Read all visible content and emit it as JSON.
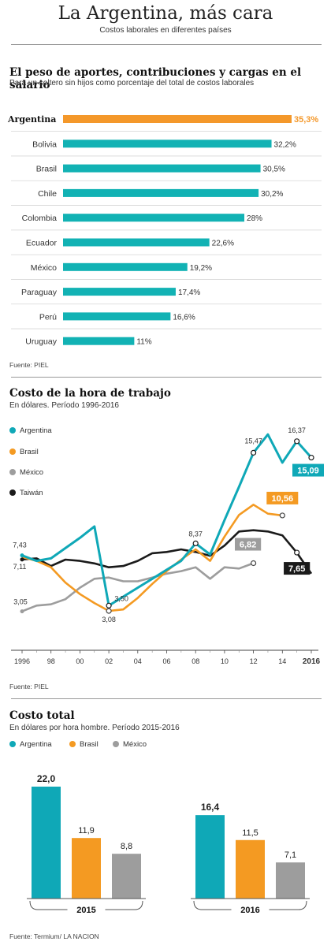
{
  "header": {
    "title": "La Argentina, más cara",
    "subtitle": "Costos laborales en diferentes países"
  },
  "colors": {
    "argentina": "#0fa8b7",
    "brasil": "#f49a22",
    "mexico": "#9d9d9d",
    "taiwan": "#1a1a1a",
    "teal_bar": "#12b2b4",
    "orange_bar": "#f4982a"
  },
  "chart_data": [
    {
      "type": "bar",
      "orientation": "horizontal",
      "title": "El peso de aportes, contribuciones y cargas en el salario",
      "subtitle": "Para un soltero sin hijos como porcentaje del total de costos laborales",
      "categories": [
        "Argentina",
        "Bolivia",
        "Brasil",
        "Chile",
        "Colombia",
        "Ecuador",
        "México",
        "Paraguay",
        "Perú",
        "Uruguay"
      ],
      "values": [
        35.3,
        32.2,
        30.5,
        30.2,
        28,
        22.6,
        19.2,
        17.4,
        16.6,
        11
      ],
      "value_labels": [
        "35,3%",
        "32,2%",
        "30,5%",
        "30,2%",
        "28%",
        "22,6%",
        "19,2%",
        "17,4%",
        "16,6%",
        "11%"
      ],
      "highlight": "Argentina",
      "source": "Fuente: PIEL"
    },
    {
      "type": "line",
      "title": "Costo de la hora de trabajo",
      "subtitle": "En dólares. Período 1996-2016",
      "x_tick_labels": [
        "1996",
        "98",
        "00",
        "02",
        "04",
        "06",
        "08",
        "10",
        "12",
        "14",
        "2016"
      ],
      "x_ticks": [
        1996,
        1998,
        2000,
        2002,
        2004,
        2006,
        2008,
        2010,
        2012,
        2014,
        2016
      ],
      "xlim": [
        1996,
        2016
      ],
      "series": [
        {
          "name": "Argentina",
          "x": [
            1996,
            1997,
            1998,
            1999,
            2000,
            2001,
            2002,
            2003,
            2004,
            2005,
            2006,
            2007,
            2008,
            2009,
            2010,
            2011,
            2012,
            2013,
            2014,
            2015,
            2016
          ],
          "y": [
            7.43,
            7.0,
            7.2,
            8.0,
            8.8,
            9.7,
            3.5,
            4.2,
            4.9,
            5.6,
            6.3,
            7.0,
            8.37,
            7.5,
            10.2,
            12.8,
            15.47,
            16.9,
            14.7,
            16.37,
            15.09
          ]
        },
        {
          "name": "Brasil",
          "x": [
            1996,
            1997,
            1998,
            1999,
            2000,
            2001,
            2002,
            2003,
            2004,
            2005,
            2006,
            2007,
            2008,
            2009,
            2010,
            2011,
            2012,
            2013,
            2014
          ],
          "y": [
            7.3,
            7.0,
            6.5,
            5.3,
            4.4,
            3.7,
            3.08,
            3.2,
            4.1,
            5.2,
            6.2,
            7.1,
            7.9,
            7.0,
            8.9,
            10.6,
            11.4,
            10.7,
            10.56
          ]
        },
        {
          "name": "México",
          "x": [
            1996,
            1997,
            1998,
            1999,
            2000,
            2001,
            2002,
            2003,
            2004,
            2005,
            2006,
            2007,
            2008,
            2009,
            2010,
            2011,
            2012
          ],
          "y": [
            3.05,
            3.5,
            3.6,
            4.0,
            4.9,
            5.6,
            5.7,
            5.4,
            5.4,
            5.7,
            6.0,
            6.2,
            6.5,
            5.6,
            6.5,
            6.4,
            6.82
          ]
        },
        {
          "name": "Taiwán",
          "x": [
            1996,
            1997,
            1998,
            1999,
            2000,
            2001,
            2002,
            2003,
            2004,
            2005,
            2006,
            2007,
            2008,
            2009,
            2010,
            2011,
            2012,
            2013,
            2014,
            2015,
            2016
          ],
          "y": [
            7.11,
            7.2,
            6.6,
            7.1,
            7.0,
            6.8,
            6.5,
            6.6,
            7.0,
            7.6,
            7.7,
            7.9,
            7.7,
            7.4,
            8.2,
            9.3,
            9.4,
            9.3,
            9.0,
            7.65,
            6.0
          ]
        }
      ],
      "point_labels": [
        {
          "series": "Argentina",
          "x": 1996,
          "text": "7,43"
        },
        {
          "series": "Taiwán",
          "x": 1996,
          "text": "7,11"
        },
        {
          "series": "México",
          "x": 1996,
          "text": "3,05"
        },
        {
          "series": "Argentina",
          "x": 2002,
          "text": "3,50"
        },
        {
          "series": "Brasil",
          "x": 2002,
          "text": "3,08"
        },
        {
          "series": "Argentina",
          "x": 2008,
          "text": "8,37"
        },
        {
          "series": "Argentina",
          "x": 2012,
          "text": "15,47"
        },
        {
          "series": "Argentina",
          "x": 2015,
          "text": "16,37"
        },
        {
          "series": "Argentina",
          "x": 2016,
          "text": "15,09",
          "boxed": true
        },
        {
          "series": "Brasil",
          "x": 2014,
          "text": "10,56",
          "boxed": true
        },
        {
          "series": "México",
          "x": 2012,
          "text": "6,82",
          "boxed": true
        },
        {
          "series": "Taiwán",
          "x": 2015,
          "text": "7,65",
          "boxed": true
        }
      ],
      "legend": [
        "Argentina",
        "Brasil",
        "México",
        "Taiwán"
      ],
      "source": "Fuente: PIEL"
    },
    {
      "type": "bar",
      "title": "Costo total",
      "subtitle": "En dólares por hora hombre. Período 2015-2016",
      "categories": [
        "2015",
        "2016"
      ],
      "series": [
        {
          "name": "Argentina",
          "values": [
            22.0,
            16.4
          ],
          "labels": [
            "22,0",
            "16,4"
          ]
        },
        {
          "name": "Brasil",
          "values": [
            11.9,
            11.5
          ],
          "labels": [
            "11,9",
            "11,5"
          ]
        },
        {
          "name": "México",
          "values": [
            8.8,
            7.1
          ],
          "labels": [
            "8,8",
            "7,1"
          ]
        }
      ],
      "source": "Fuente: Termium/ LA NACION"
    }
  ]
}
